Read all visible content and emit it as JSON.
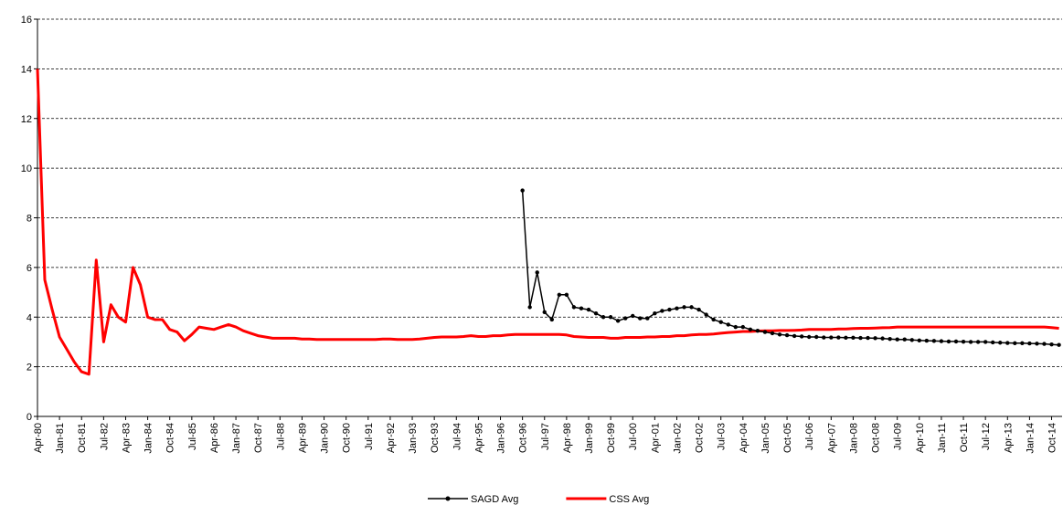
{
  "chart_data": {
    "type": "line",
    "categories": [
      "Apr-80",
      null,
      null,
      "Jan-81",
      null,
      null,
      "Oct-81",
      null,
      null,
      "Jul-82",
      null,
      null,
      "Apr-83",
      null,
      null,
      "Jan-84",
      null,
      null,
      "Oct-84",
      null,
      null,
      "Jul-85",
      null,
      null,
      "Apr-86",
      null,
      null,
      "Jan-87",
      null,
      null,
      "Oct-87",
      null,
      null,
      "Jul-88",
      null,
      null,
      "Apr-89",
      null,
      null,
      "Jan-90",
      null,
      null,
      "Oct-90",
      null,
      null,
      "Jul-91",
      null,
      null,
      "Apr-92",
      null,
      null,
      "Jan-93",
      null,
      null,
      "Oct-93",
      null,
      null,
      "Jul-94",
      null,
      null,
      "Apr-95",
      null,
      null,
      "Jan-96",
      null,
      null,
      "Oct-96",
      null,
      null,
      "Jul-97",
      null,
      null,
      "Apr-98",
      null,
      null,
      "Jan-99",
      null,
      null,
      "Oct-99",
      null,
      null,
      "Jul-00",
      null,
      null,
      "Apr-01",
      null,
      null,
      "Jan-02",
      null,
      null,
      "Oct-02",
      null,
      null,
      "Jul-03",
      null,
      null,
      "Apr-04",
      null,
      null,
      "Jan-05",
      null,
      null,
      "Oct-05",
      null,
      null,
      "Jul-06",
      null,
      null,
      "Apr-07",
      null,
      null,
      "Jan-08",
      null,
      null,
      "Oct-08",
      null,
      null,
      "Jul-09",
      null,
      null,
      "Apr-10",
      null,
      null,
      "Jan-11",
      null,
      null,
      "Oct-11",
      null,
      null,
      "Jul-12",
      null,
      null,
      "Apr-13",
      null,
      null,
      "Jan-14",
      null,
      null,
      "Oct-14",
      null
    ],
    "series": [
      {
        "name": "SAGD Avg",
        "color": "#000000",
        "marker": true,
        "values": [
          null,
          null,
          null,
          null,
          null,
          null,
          null,
          null,
          null,
          null,
          null,
          null,
          null,
          null,
          null,
          null,
          null,
          null,
          null,
          null,
          null,
          null,
          null,
          null,
          null,
          null,
          null,
          null,
          null,
          null,
          null,
          null,
          null,
          null,
          null,
          null,
          null,
          null,
          null,
          null,
          null,
          null,
          null,
          null,
          null,
          null,
          null,
          null,
          null,
          null,
          null,
          null,
          null,
          null,
          null,
          null,
          null,
          null,
          null,
          null,
          null,
          null,
          null,
          null,
          null,
          null,
          9.1,
          4.4,
          5.8,
          4.2,
          3.9,
          4.9,
          4.9,
          4.4,
          4.35,
          4.3,
          4.15,
          4.0,
          4.0,
          3.85,
          3.95,
          4.05,
          3.95,
          3.95,
          4.15,
          4.25,
          4.3,
          4.35,
          4.4,
          4.4,
          4.3,
          4.1,
          3.9,
          3.8,
          3.7,
          3.6,
          3.6,
          3.5,
          3.45,
          3.4,
          3.35,
          3.3,
          3.27,
          3.24,
          3.22,
          3.2,
          3.2,
          3.18,
          3.18,
          3.18,
          3.17,
          3.17,
          3.16,
          3.16,
          3.15,
          3.14,
          3.12,
          3.1,
          3.1,
          3.08,
          3.06,
          3.05,
          3.04,
          3.03,
          3.02,
          3.02,
          3.01,
          3.0,
          3.0,
          3.0,
          2.98,
          2.97,
          2.96,
          2.95,
          2.95,
          2.94,
          2.93,
          2.92,
          2.9,
          2.88
        ]
      },
      {
        "name": "CSS Avg",
        "color": "#ff0000",
        "marker": false,
        "values": [
          14,
          5.5,
          4.3,
          3.2,
          2.7,
          2.2,
          1.8,
          1.7,
          6.3,
          3.0,
          4.5,
          4.0,
          3.8,
          6.0,
          5.3,
          4.0,
          3.9,
          3.9,
          3.5,
          3.4,
          3.05,
          3.3,
          3.6,
          3.55,
          3.5,
          3.6,
          3.7,
          3.6,
          3.45,
          3.35,
          3.25,
          3.2,
          3.15,
          3.15,
          3.15,
          3.15,
          3.12,
          3.12,
          3.1,
          3.1,
          3.1,
          3.1,
          3.1,
          3.1,
          3.1,
          3.1,
          3.1,
          3.12,
          3.12,
          3.1,
          3.1,
          3.1,
          3.12,
          3.15,
          3.18,
          3.2,
          3.2,
          3.2,
          3.22,
          3.25,
          3.22,
          3.22,
          3.25,
          3.25,
          3.28,
          3.3,
          3.3,
          3.3,
          3.3,
          3.3,
          3.3,
          3.3,
          3.28,
          3.22,
          3.2,
          3.18,
          3.18,
          3.18,
          3.15,
          3.15,
          3.18,
          3.18,
          3.18,
          3.2,
          3.2,
          3.22,
          3.22,
          3.25,
          3.25,
          3.28,
          3.3,
          3.3,
          3.32,
          3.35,
          3.38,
          3.4,
          3.42,
          3.42,
          3.44,
          3.45,
          3.45,
          3.46,
          3.46,
          3.47,
          3.48,
          3.5,
          3.5,
          3.5,
          3.5,
          3.52,
          3.52,
          3.54,
          3.55,
          3.55,
          3.56,
          3.57,
          3.58,
          3.6,
          3.6,
          3.6,
          3.6,
          3.6,
          3.6,
          3.6,
          3.6,
          3.6,
          3.6,
          3.6,
          3.6,
          3.6,
          3.6,
          3.6,
          3.6,
          3.6,
          3.6,
          3.6,
          3.6,
          3.6,
          3.58,
          3.55
        ]
      }
    ],
    "ylim": [
      0,
      16
    ],
    "yticks": [
      0,
      2,
      4,
      6,
      8,
      10,
      12,
      14,
      16
    ],
    "grid": true,
    "legend": "bottom"
  }
}
